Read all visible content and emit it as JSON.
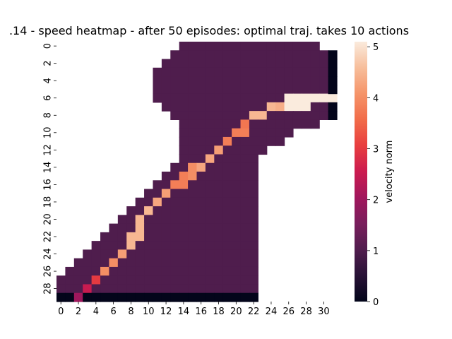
{
  "chart_data": {
    "type": "heatmap",
    "title": "14 - speed heatmap - after 50 episodes:  optimal traj. takes 10 actions",
    "title_clipped_prefix": ".",
    "xlabel": "",
    "ylabel": "",
    "x_ticks": [
      "0",
      "2",
      "4",
      "6",
      "8",
      "10",
      "12",
      "14",
      "16",
      "18",
      "20",
      "22",
      "24",
      "26",
      "28",
      "30"
    ],
    "y_ticks": [
      "0",
      "2",
      "4",
      "6",
      "8",
      "10",
      "12",
      "14",
      "16",
      "18",
      "20",
      "22",
      "24",
      "26",
      "28"
    ],
    "n_cols": 32,
    "n_rows": 30,
    "colorbar": {
      "label": "velocity norm",
      "range": [
        0,
        5.1
      ],
      "ticks": [
        "0",
        "1",
        "2",
        "3",
        "4",
        "5"
      ],
      "colormap": "rocket"
    },
    "base_value": 1,
    "grid": [
      {
        "row": 0,
        "start": 14,
        "end": 29
      },
      {
        "row": 1,
        "start": 13,
        "end": 30
      },
      {
        "row": 2,
        "start": 12,
        "end": 30
      },
      {
        "row": 3,
        "start": 11,
        "end": 30
      },
      {
        "row": 4,
        "start": 11,
        "end": 30
      },
      {
        "row": 5,
        "start": 11,
        "end": 30
      },
      {
        "row": 6,
        "start": 11,
        "end": 31
      },
      {
        "row": 7,
        "start": 12,
        "end": 30
      },
      {
        "row": 8,
        "start": 13,
        "end": 30
      },
      {
        "row": 9,
        "start": 14,
        "end": 29
      },
      {
        "row": 10,
        "start": 14,
        "end": 26
      },
      {
        "row": 11,
        "start": 14,
        "end": 25
      },
      {
        "row": 12,
        "start": 14,
        "end": 23
      },
      {
        "row": 13,
        "start": 14,
        "end": 22
      },
      {
        "row": 14,
        "start": 13,
        "end": 22
      },
      {
        "row": 15,
        "start": 12,
        "end": 22
      },
      {
        "row": 16,
        "start": 11,
        "end": 22
      },
      {
        "row": 17,
        "start": 10,
        "end": 22
      },
      {
        "row": 18,
        "start": 9,
        "end": 22
      },
      {
        "row": 19,
        "start": 8,
        "end": 22
      },
      {
        "row": 20,
        "start": 7,
        "end": 22
      },
      {
        "row": 21,
        "start": 6,
        "end": 22
      },
      {
        "row": 22,
        "start": 5,
        "end": 22
      },
      {
        "row": 23,
        "start": 4,
        "end": 22
      },
      {
        "row": 24,
        "start": 3,
        "end": 22
      },
      {
        "row": 25,
        "start": 2,
        "end": 22
      },
      {
        "row": 26,
        "start": 1,
        "end": 22
      },
      {
        "row": 27,
        "start": 0,
        "end": 22
      },
      {
        "row": 28,
        "start": 0,
        "end": 22
      },
      {
        "row": 29,
        "start": 0,
        "end": 22,
        "value": 0
      }
    ],
    "special_cells": [
      {
        "row": 1,
        "col": 31,
        "value": 0
      },
      {
        "row": 2,
        "col": 31,
        "value": 0
      },
      {
        "row": 3,
        "col": 31,
        "value": 0
      },
      {
        "row": 4,
        "col": 31,
        "value": 0
      },
      {
        "row": 5,
        "col": 31,
        "value": 0
      },
      {
        "row": 7,
        "col": 31,
        "value": 0
      },
      {
        "row": 8,
        "col": 31,
        "value": 0
      },
      {
        "row": 29,
        "col": 2,
        "value": 2
      },
      {
        "row": 28,
        "col": 3,
        "value": 2.5
      },
      {
        "row": 27,
        "col": 4,
        "value": 3
      },
      {
        "row": 26,
        "col": 5,
        "value": 4
      },
      {
        "row": 25,
        "col": 6,
        "value": 4
      },
      {
        "row": 24,
        "col": 7,
        "value": 4.2
      },
      {
        "row": 23,
        "col": 8,
        "value": 4.5
      },
      {
        "row": 22,
        "col": 8,
        "value": 4.5
      },
      {
        "row": 22,
        "col": 9,
        "value": 4.5
      },
      {
        "row": 21,
        "col": 9,
        "value": 4.5
      },
      {
        "row": 20,
        "col": 9,
        "value": 4.5
      },
      {
        "row": 19,
        "col": 10,
        "value": 4.5
      },
      {
        "row": 18,
        "col": 11,
        "value": 4.3
      },
      {
        "row": 17,
        "col": 12,
        "value": 4.2
      },
      {
        "row": 16,
        "col": 13,
        "value": 3.8
      },
      {
        "row": 16,
        "col": 14,
        "value": 3.8
      },
      {
        "row": 15,
        "col": 14,
        "value": 3.8
      },
      {
        "row": 15,
        "col": 15,
        "value": 4
      },
      {
        "row": 14,
        "col": 15,
        "value": 4
      },
      {
        "row": 14,
        "col": 16,
        "value": 4.3
      },
      {
        "row": 13,
        "col": 17,
        "value": 4.3
      },
      {
        "row": 12,
        "col": 18,
        "value": 4.2
      },
      {
        "row": 11,
        "col": 19,
        "value": 3.8
      },
      {
        "row": 10,
        "col": 20,
        "value": 3.8
      },
      {
        "row": 10,
        "col": 21,
        "value": 3.8
      },
      {
        "row": 9,
        "col": 21,
        "value": 3.7
      },
      {
        "row": 8,
        "col": 22,
        "value": 4.5
      },
      {
        "row": 8,
        "col": 23,
        "value": 4.5
      },
      {
        "row": 7,
        "col": 24,
        "value": 4.5
      },
      {
        "row": 7,
        "col": 25,
        "value": 4.4
      },
      {
        "row": 6,
        "col": 26,
        "value": 5.1
      },
      {
        "row": 6,
        "col": 27,
        "value": 5.1
      },
      {
        "row": 6,
        "col": 28,
        "value": 5.1
      },
      {
        "row": 6,
        "col": 29,
        "value": 5.1
      },
      {
        "row": 6,
        "col": 30,
        "value": 5.1
      },
      {
        "row": 6,
        "col": 31,
        "value": 5.1
      },
      {
        "row": 7,
        "col": 26,
        "value": 5.1
      },
      {
        "row": 7,
        "col": 27,
        "value": 5.1
      },
      {
        "row": 7,
        "col": 28,
        "value": 5.1
      }
    ]
  }
}
